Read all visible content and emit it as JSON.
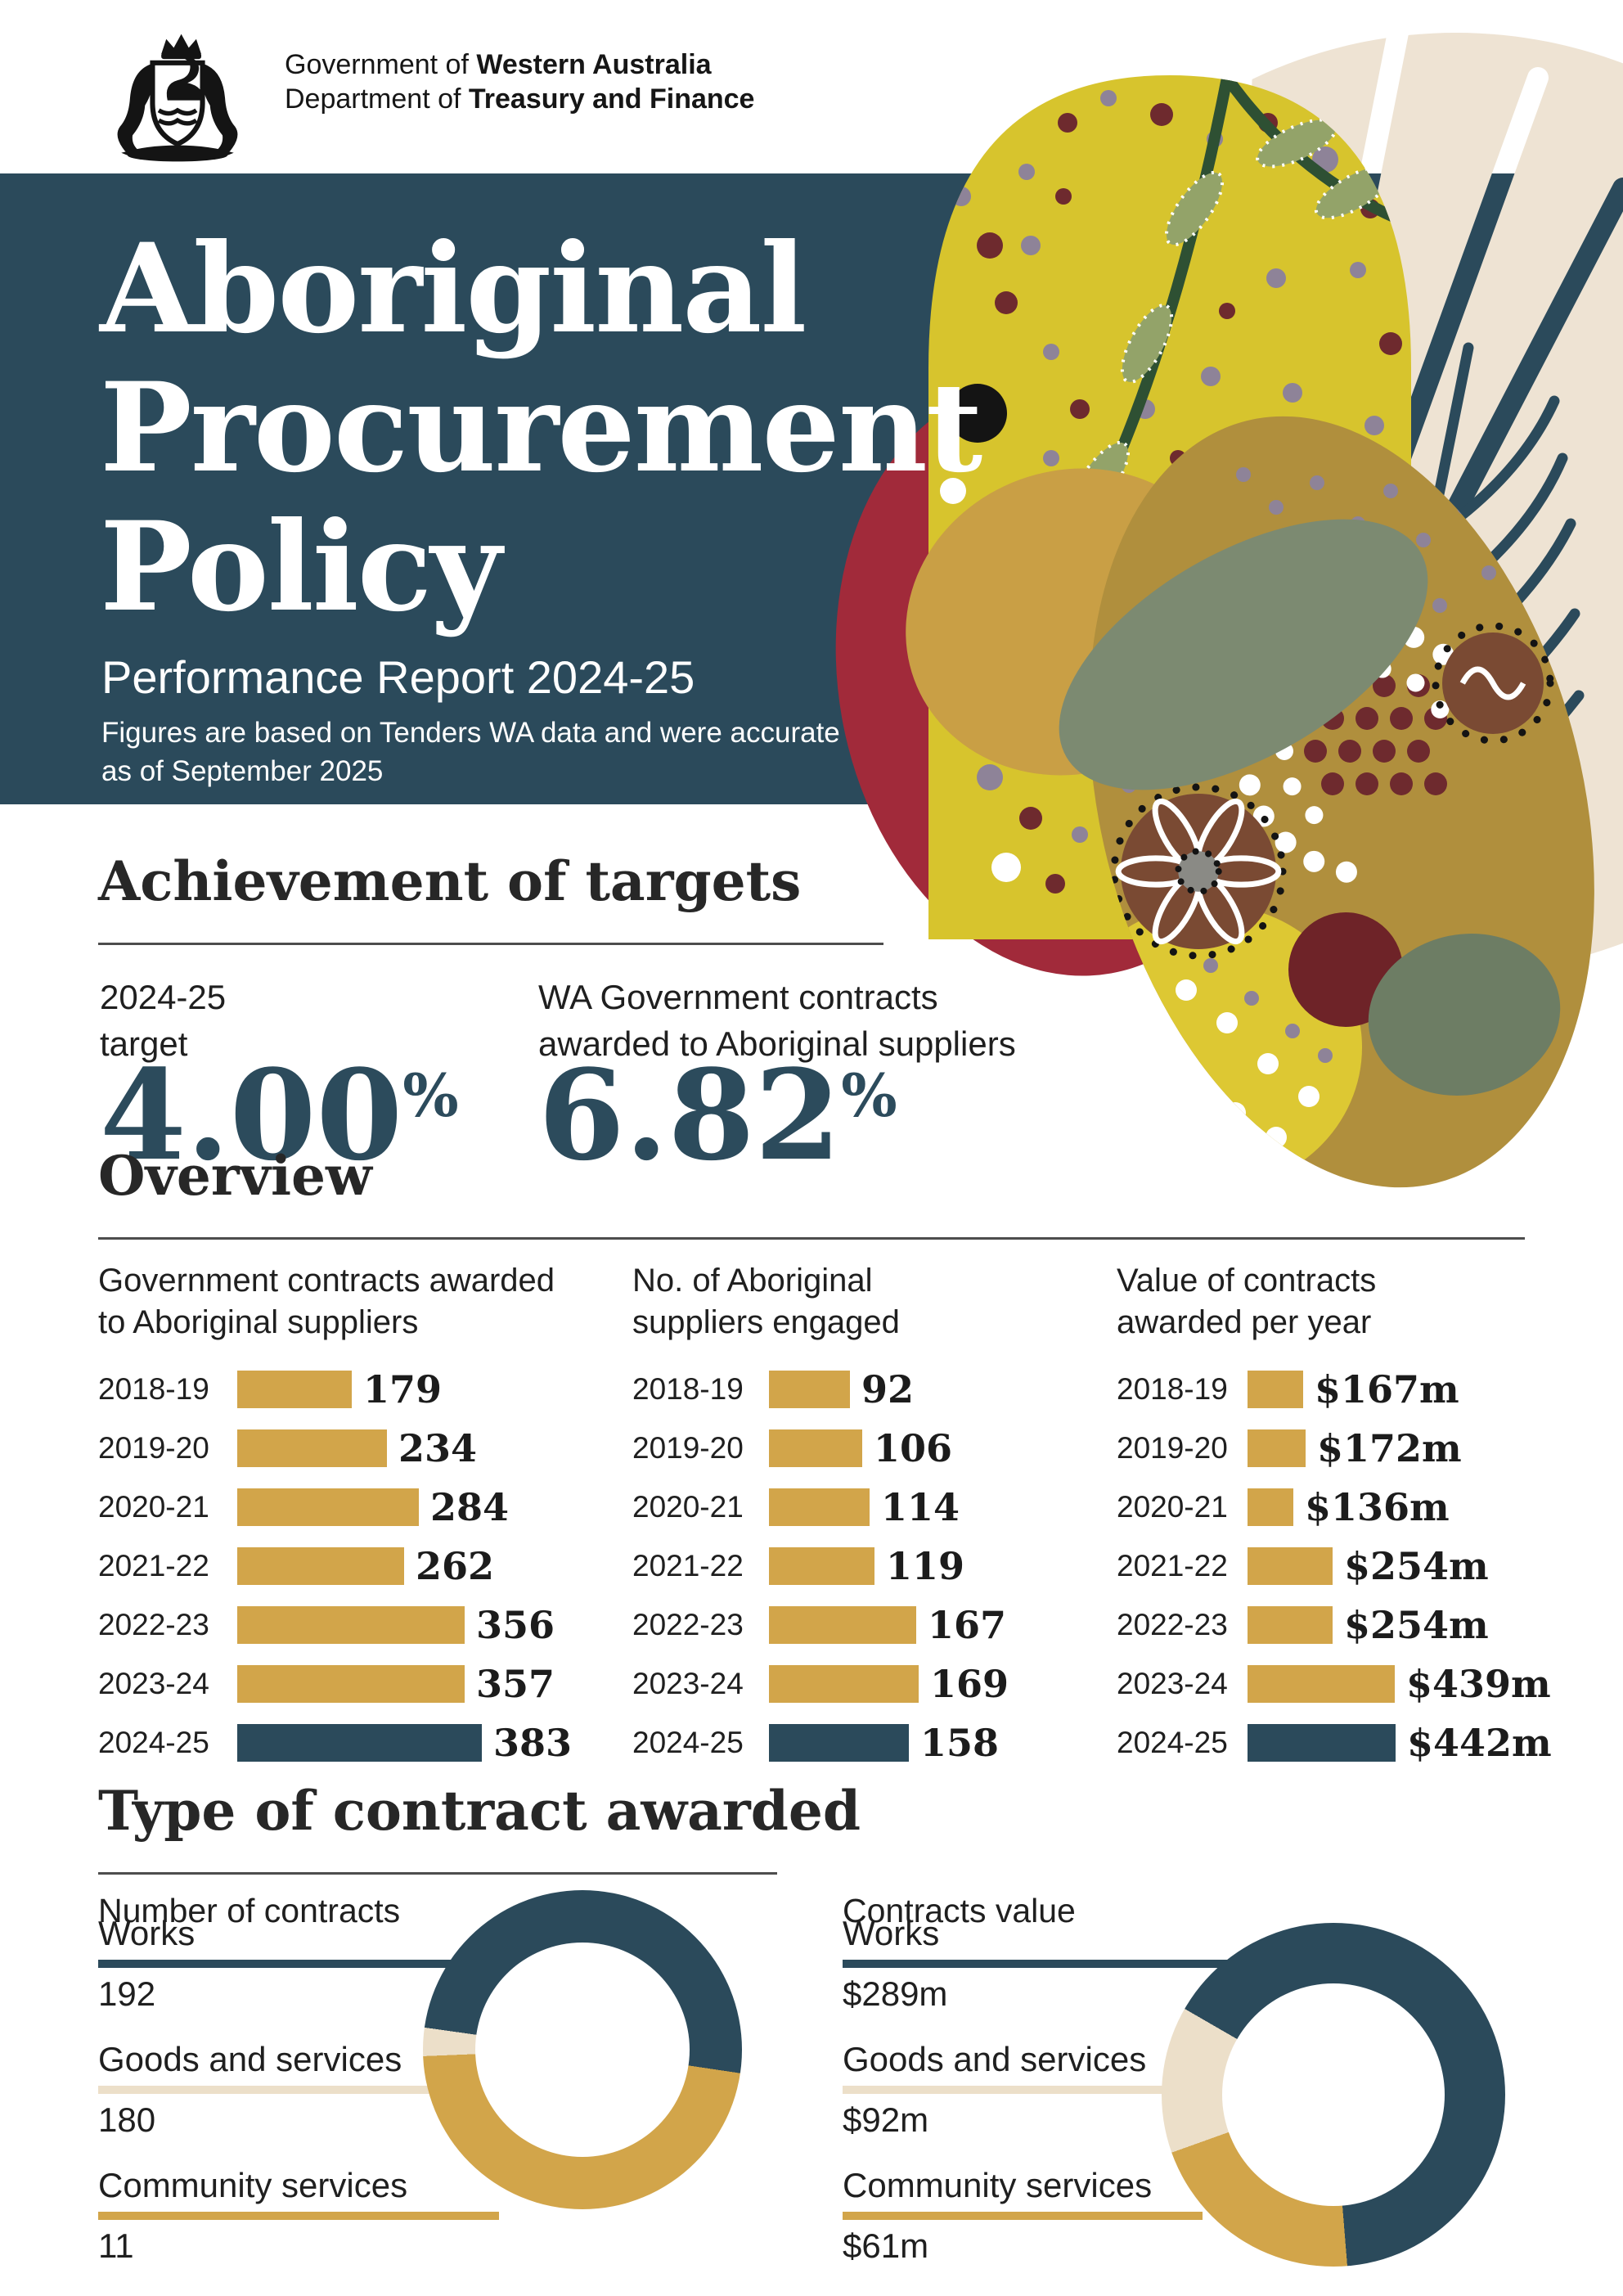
{
  "palette": {
    "teal": "#2b4a5b",
    "gold": "#d2a54a",
    "cream": "#ecdfc9",
    "ink": "#1f1f1f",
    "white": "#ffffff",
    "art_red": "#a12a3a",
    "art_yellow": "#d7c42d",
    "art_mustard": "#c99f45",
    "art_olive": "#7c8a71",
    "art_egg": "#b08f3d"
  },
  "header": {
    "org_line1_prefix": "Government of ",
    "org_line1_bold": "Western Australia",
    "org_line2_prefix": "Department of ",
    "org_line2_bold": "Treasury and Finance",
    "crest_icon": "wa-coat-of-arms-icon"
  },
  "banner": {
    "title_lines": [
      "Aboriginal",
      "Procurement",
      "Policy"
    ],
    "subtitle": "Performance Report 2024-25",
    "note_lines": [
      "Figures are based on Tenders WA data and were accurate",
      "as of September 2025"
    ]
  },
  "targets": {
    "heading": "Achievement of targets",
    "items": [
      {
        "label_lines": [
          "2024-25",
          "target"
        ],
        "value": "4.00",
        "unit": "%"
      },
      {
        "label_lines": [
          "WA Government contracts",
          "awarded to Aboriginal suppliers"
        ],
        "value": "6.82",
        "unit": "%"
      }
    ]
  },
  "overview": {
    "heading": "Overview"
  },
  "type_section": {
    "heading": "Type of contract awarded"
  },
  "chart_data": [
    {
      "id": "contracts-awarded",
      "type": "bar",
      "orientation": "horizontal",
      "title": "Government contracts awarded to Aboriginal suppliers",
      "title_lines": [
        "Government contracts awarded",
        "to Aboriginal suppliers"
      ],
      "categories": [
        "2018-19",
        "2019-20",
        "2020-21",
        "2021-22",
        "2022-23",
        "2023-24",
        "2024-25"
      ],
      "values": [
        179,
        234,
        284,
        262,
        356,
        357,
        383
      ],
      "value_labels": [
        "179",
        "234",
        "284",
        "262",
        "356",
        "357",
        "383"
      ],
      "bar_color": "gold",
      "highlight_last_color": "teal",
      "xlim": [
        0,
        400
      ],
      "grid": false
    },
    {
      "id": "suppliers-engaged",
      "type": "bar",
      "orientation": "horizontal",
      "title": "No. of Aboriginal suppliers engaged",
      "title_lines": [
        "No. of Aboriginal",
        "suppliers engaged"
      ],
      "categories": [
        "2018-19",
        "2019-20",
        "2020-21",
        "2021-22",
        "2022-23",
        "2023-24",
        "2024-25"
      ],
      "values": [
        92,
        106,
        114,
        119,
        167,
        169,
        158
      ],
      "value_labels": [
        "92",
        "106",
        "114",
        "119",
        "167",
        "169",
        "158"
      ],
      "bar_color": "gold",
      "highlight_last_color": "teal",
      "xlim": [
        0,
        180
      ],
      "grid": false
    },
    {
      "id": "value-per-year",
      "type": "bar",
      "orientation": "horizontal",
      "title": "Value of contracts awarded per year",
      "title_lines": [
        "Value of contracts",
        "awarded per year"
      ],
      "categories": [
        "2018-19",
        "2019-20",
        "2020-21",
        "2021-22",
        "2022-23",
        "2023-24",
        "2024-25"
      ],
      "values": [
        167,
        172,
        136,
        254,
        254,
        439,
        442
      ],
      "value_labels": [
        "$167m",
        "$172m",
        "$136m",
        "$254m",
        "$254m",
        "$439m",
        "$442m"
      ],
      "unit_note": "$m",
      "bar_color": "gold",
      "highlight_last_color": "teal",
      "xlim": [
        0,
        450
      ],
      "grid": false
    },
    {
      "id": "type-count",
      "type": "pie",
      "subtype": "donut",
      "title": "Number of contracts",
      "slices": [
        {
          "label": "Works",
          "value": 192,
          "display": "192",
          "slice_color": "teal",
          "line_color": "teal"
        },
        {
          "label": "Goods and services",
          "value": 180,
          "display": "180",
          "slice_color": "gold",
          "line_color": "cream"
        },
        {
          "label": "Community services",
          "value": 11,
          "display": "11",
          "slice_color": "cream",
          "line_color": "gold"
        }
      ]
    },
    {
      "id": "type-value",
      "type": "pie",
      "subtype": "donut",
      "title": "Contracts value",
      "slices": [
        {
          "label": "Works",
          "value": 289,
          "display": "$289m",
          "slice_color": "teal",
          "line_color": "teal"
        },
        {
          "label": "Goods and services",
          "value": 92,
          "display": "$92m",
          "slice_color": "gold",
          "line_color": "cream"
        },
        {
          "label": "Community services",
          "value": 61,
          "display": "$61m",
          "slice_color": "cream",
          "line_color": "gold"
        }
      ]
    }
  ]
}
